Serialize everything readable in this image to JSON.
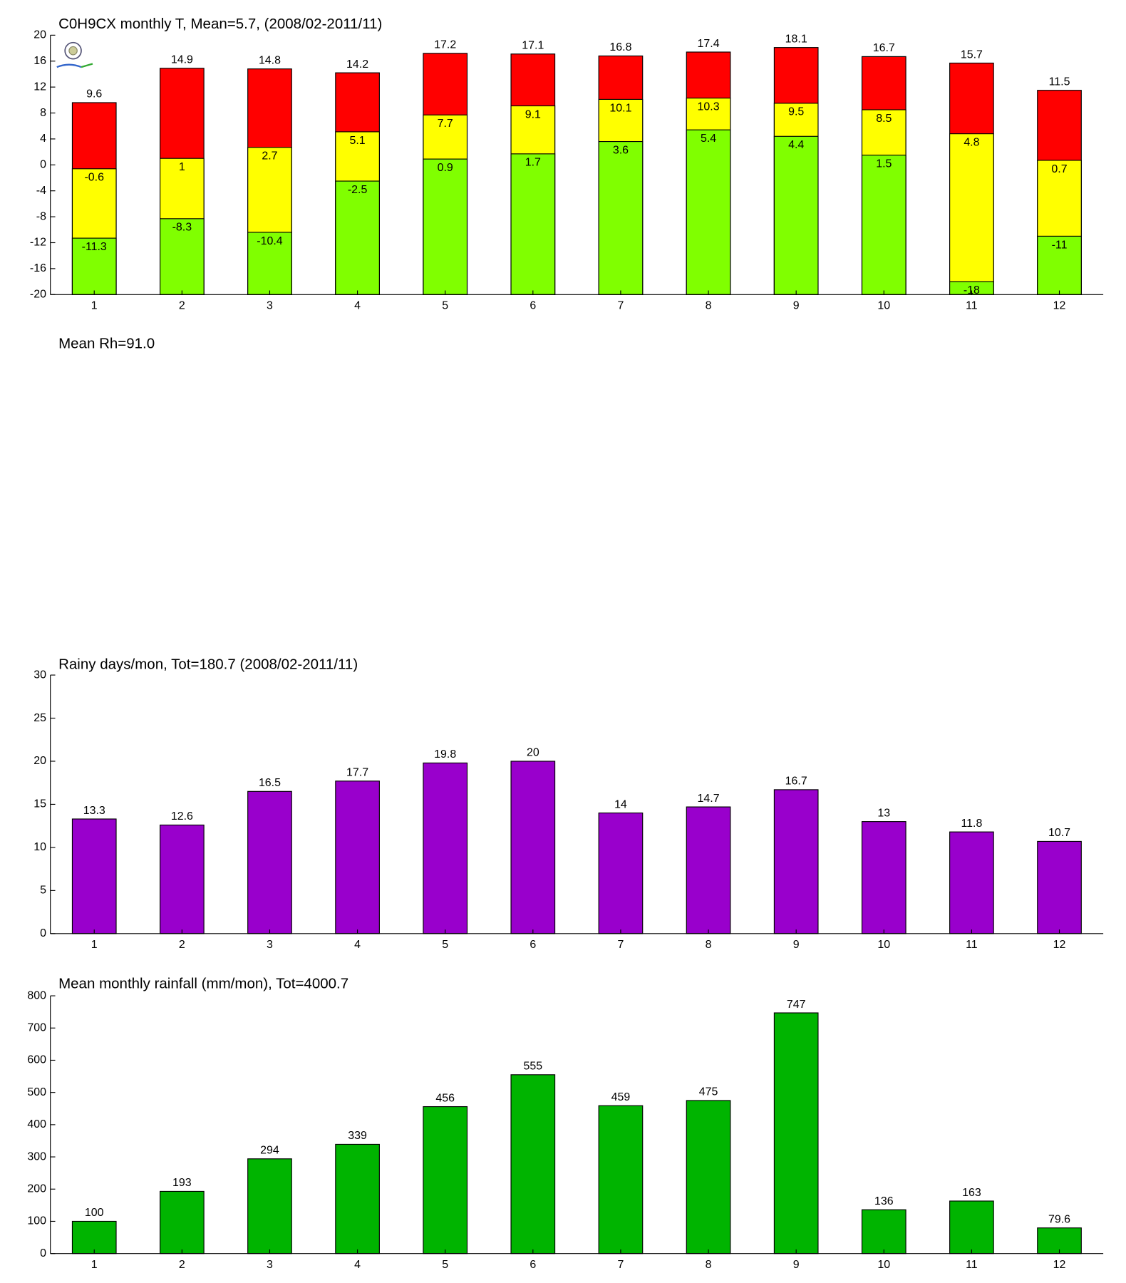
{
  "chart_data": [
    {
      "type": "bar",
      "title": "C0H9CX monthly T, Mean=5.7, (2008/02-2011/11)",
      "categories": [
        "1",
        "2",
        "3",
        "4",
        "5",
        "6",
        "7",
        "8",
        "9",
        "10",
        "11",
        "12"
      ],
      "series": [
        {
          "color": "#ff0000",
          "label_position": "above",
          "values": [
            9.6,
            14.9,
            14.8,
            14.2,
            17.2,
            17.1,
            16.8,
            17.4,
            18.1,
            16.7,
            15.7,
            11.5
          ]
        },
        {
          "color": "#ffff00",
          "label_position": "below",
          "values": [
            -0.6,
            1,
            2.7,
            5.1,
            7.7,
            9.1,
            10.1,
            10.3,
            9.5,
            8.5,
            4.8,
            0.7
          ]
        },
        {
          "color": "#80ff00",
          "label_position": "below",
          "values": [
            -11.3,
            -8.3,
            -10.4,
            -2.5,
            0.9,
            1.7,
            3.6,
            5.4,
            4.4,
            1.5,
            -18,
            -11
          ]
        }
      ],
      "ylim": [
        -20,
        20
      ],
      "yticks": [
        -20,
        -16,
        -12,
        -8,
        -4,
        0,
        4,
        8,
        12,
        16,
        20
      ]
    },
    {
      "type": "blank",
      "title": "Mean Rh=91.0"
    },
    {
      "type": "bar",
      "title": "Rainy days/mon, Tot=180.7 (2008/02-2011/11)",
      "categories": [
        "1",
        "2",
        "3",
        "4",
        "5",
        "6",
        "7",
        "8",
        "9",
        "10",
        "11",
        "12"
      ],
      "series": [
        {
          "color": "#9900cc",
          "label_position": "above",
          "values": [
            13.3,
            12.6,
            16.5,
            17.7,
            19.8,
            20,
            14,
            14.7,
            16.7,
            13,
            11.8,
            10.7
          ]
        }
      ],
      "ylim": [
        0,
        30
      ],
      "yticks": [
        0,
        5,
        10,
        15,
        20,
        25,
        30
      ]
    },
    {
      "type": "bar",
      "title": "Mean monthly rainfall (mm/mon), Tot=4000.7",
      "categories": [
        "1",
        "2",
        "3",
        "4",
        "5",
        "6",
        "7",
        "8",
        "9",
        "10",
        "11",
        "12"
      ],
      "series": [
        {
          "color": "#00b400",
          "label_position": "above",
          "values": [
            100,
            193,
            294,
            339,
            456,
            555,
            459,
            475,
            747,
            136,
            163,
            79.6
          ]
        }
      ],
      "ylim": [
        0,
        800
      ],
      "yticks": [
        0,
        100,
        200,
        300,
        400,
        500,
        600,
        700,
        800
      ]
    }
  ]
}
